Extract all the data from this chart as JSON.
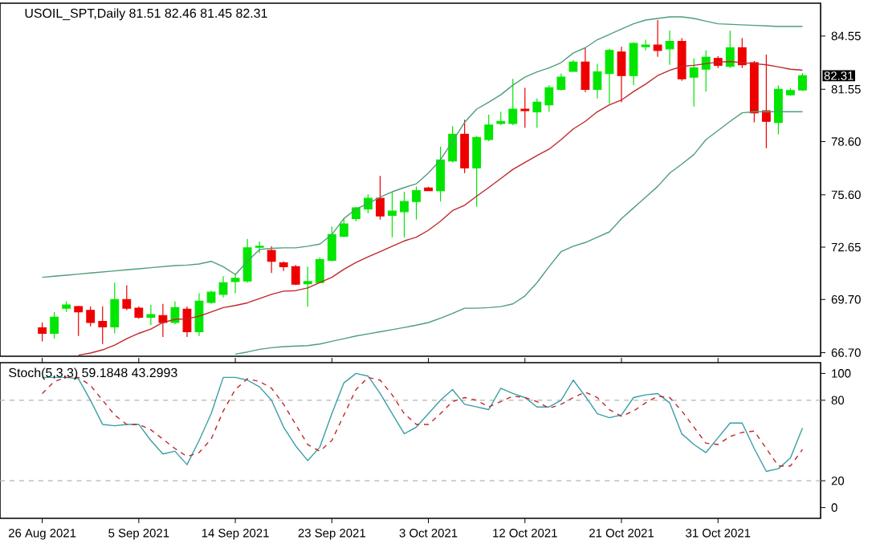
{
  "chart_data": [
    {
      "type": "candlestick",
      "title": "USOIL_SPT,Daily  81.51 82.46 81.45 82.31",
      "ohlc": [
        [
          68.1,
          68.4,
          67.34,
          67.79
        ],
        [
          67.79,
          69.0,
          67.49,
          68.7
        ],
        [
          69.21,
          69.6,
          69.0,
          69.39
        ],
        [
          69.3,
          69.35,
          67.64,
          69.0
        ],
        [
          69.09,
          69.3,
          68.19,
          68.4
        ],
        [
          68.46,
          69.3,
          67.19,
          68.16
        ],
        [
          68.16,
          70.65,
          67.79,
          69.69
        ],
        [
          69.69,
          70.5,
          69.09,
          69.21
        ],
        [
          69.21,
          69.3,
          68.61,
          68.7
        ],
        [
          68.7,
          69.39,
          68.25,
          68.85
        ],
        [
          68.79,
          69.45,
          67.58,
          68.4
        ],
        [
          68.4,
          69.6,
          68.31,
          69.24
        ],
        [
          69.15,
          69.3,
          67.58,
          67.88
        ],
        [
          67.88,
          70.05,
          67.64,
          69.6
        ],
        [
          69.53,
          70.2,
          69.45,
          70.11
        ],
        [
          69.99,
          71.01,
          69.81,
          70.65
        ],
        [
          70.71,
          71.1,
          70.05,
          70.89
        ],
        [
          70.74,
          73.12,
          70.65,
          72.61
        ],
        [
          72.64,
          72.97,
          72.31,
          72.7
        ],
        [
          72.46,
          72.7,
          71.19,
          71.85
        ],
        [
          71.76,
          71.85,
          71.31,
          71.55
        ],
        [
          71.55,
          71.64,
          70.5,
          70.56
        ],
        [
          70.59,
          71.55,
          69.3,
          70.71
        ],
        [
          70.65,
          72.07,
          70.65,
          71.94
        ],
        [
          71.91,
          73.81,
          71.85,
          73.36
        ],
        [
          73.27,
          74.26,
          73.21,
          73.96
        ],
        [
          74.26,
          74.92,
          74.11,
          74.86
        ],
        [
          74.8,
          75.62,
          74.56,
          75.4
        ],
        [
          75.4,
          76.67,
          74.2,
          74.41
        ],
        [
          74.44,
          75.77,
          73.21,
          74.68
        ],
        [
          74.65,
          75.77,
          73.21,
          75.22
        ],
        [
          75.22,
          76.07,
          74.2,
          75.83
        ],
        [
          75.98,
          76.05,
          75.8,
          75.83
        ],
        [
          75.83,
          78.32,
          75.22,
          77.57
        ],
        [
          77.51,
          79.47,
          77.42,
          79.01
        ],
        [
          79.01,
          79.83,
          76.82,
          77.12
        ],
        [
          77.12,
          78.92,
          74.92,
          78.83
        ],
        [
          78.71,
          80.13,
          78.62,
          79.53
        ],
        [
          79.62,
          80.28,
          79.53,
          79.74
        ],
        [
          79.62,
          82.14,
          79.53,
          80.43
        ],
        [
          80.43,
          81.63,
          79.38,
          80.34
        ],
        [
          80.28,
          81.03,
          79.38,
          80.82
        ],
        [
          80.67,
          81.78,
          80.28,
          81.63
        ],
        [
          81.54,
          82.44,
          81.48,
          82.23
        ],
        [
          82.56,
          83.2,
          82.53,
          83.08
        ],
        [
          83.08,
          83.89,
          81.39,
          81.54
        ],
        [
          81.54,
          82.99,
          81.03,
          82.53
        ],
        [
          82.44,
          83.83,
          80.73,
          83.74
        ],
        [
          83.65,
          83.95,
          80.82,
          82.32
        ],
        [
          82.32,
          84.19,
          81.78,
          84.13
        ],
        [
          83.95,
          84.34,
          83.74,
          84.04
        ],
        [
          84.04,
          85.45,
          83.38,
          83.74
        ],
        [
          83.83,
          84.85,
          82.93,
          84.25
        ],
        [
          84.25,
          84.43,
          82.02,
          82.14
        ],
        [
          82.23,
          83.29,
          80.58,
          82.75
        ],
        [
          82.68,
          83.74,
          81.42,
          83.35
        ],
        [
          83.29,
          83.41,
          82.75,
          82.9
        ],
        [
          82.84,
          84.85,
          82.75,
          83.89
        ],
        [
          83.89,
          84.43,
          82.75,
          82.93
        ],
        [
          83.05,
          83.14,
          79.68,
          80.22
        ],
        [
          80.34,
          83.5,
          78.23,
          79.74
        ],
        [
          79.68,
          81.78,
          79.01,
          81.54
        ],
        [
          81.24,
          81.63,
          81.18,
          81.48
        ],
        [
          81.51,
          82.46,
          81.45,
          82.31
        ]
      ],
      "colors": [
        "#ee0000",
        "#00e600",
        "#00e600",
        "#ee0000",
        "#ee0000",
        "#ee0000",
        "#00e600",
        "#ee0000",
        "#ee0000",
        "#00e600",
        "#ee0000",
        "#00e600",
        "#ee0000",
        "#00e600",
        "#00e600",
        "#00e600",
        "#00e600",
        "#00e600",
        "#00e600",
        "#ee0000",
        "#ee0000",
        "#ee0000",
        "#00e600",
        "#00e600",
        "#00e600",
        "#00e600",
        "#00e600",
        "#00e600",
        "#ee0000",
        "#00e600",
        "#00e600",
        "#00e600",
        "#ee0000",
        "#00e600",
        "#00e600",
        "#ee0000",
        "#00e600",
        "#00e600",
        "#00e600",
        "#00e600",
        "#ee0000",
        "#00e600",
        "#00e600",
        "#00e600",
        "#00e600",
        "#ee0000",
        "#00e600",
        "#00e600",
        "#ee0000",
        "#00e600",
        "#00e600",
        "#ee0000",
        "#00e600",
        "#ee0000",
        "#00e600",
        "#00e600",
        "#ee0000",
        "#00e600",
        "#ee0000",
        "#ee0000",
        "#ee0000",
        "#00e600",
        "#00e600",
        "#00e600"
      ],
      "series": [
        {
          "type": "line",
          "color": "#4f9e78",
          "values": [
            70.95,
            71.01,
            71.07,
            71.13,
            71.19,
            71.25,
            71.31,
            71.37,
            71.43,
            71.49,
            71.55,
            71.61,
            71.64,
            71.7,
            71.85,
            71.55,
            71.1,
            71.85,
            72.52,
            72.58,
            72.61,
            72.61,
            72.7,
            72.82,
            73.36,
            74.26,
            74.8,
            75.1,
            75.47,
            75.77,
            76.01,
            76.22,
            76.82,
            77.57,
            78.62,
            79.68,
            80.43,
            80.82,
            81.24,
            81.78,
            82.23,
            82.53,
            82.75,
            83.05,
            83.59,
            83.89,
            84.34,
            84.64,
            84.94,
            85.24,
            85.45,
            85.54,
            85.63,
            85.63,
            85.54,
            85.39,
            85.24,
            85.21,
            85.18,
            85.15,
            85.12,
            85.09,
            85.09,
            85.09
          ]
        },
        {
          "type": "line",
          "color": "#c0282d",
          "values": [
            null,
            null,
            null,
            66.56,
            66.68,
            66.86,
            67.13,
            67.49,
            67.79,
            68.03,
            68.4,
            68.58,
            68.61,
            68.76,
            69.0,
            69.24,
            69.36,
            69.51,
            69.75,
            69.99,
            70.17,
            70.2,
            70.35,
            70.65,
            70.95,
            71.4,
            71.79,
            72.1,
            72.4,
            72.7,
            73.0,
            73.21,
            73.6,
            74.11,
            74.71,
            75.01,
            75.52,
            76.01,
            76.52,
            77.03,
            77.42,
            77.81,
            78.17,
            78.71,
            79.31,
            79.74,
            80.28,
            80.67,
            80.94,
            81.42,
            81.84,
            82.32,
            82.62,
            82.84,
            82.9,
            82.99,
            83.08,
            83.11,
            83.05,
            82.99,
            82.93,
            82.81,
            82.68,
            82.62
          ]
        },
        {
          "type": "line",
          "color": "#4f9e78",
          "values": [
            null,
            null,
            null,
            null,
            null,
            null,
            null,
            null,
            null,
            null,
            null,
            null,
            null,
            null,
            null,
            null,
            66.62,
            66.74,
            66.89,
            66.98,
            67.04,
            67.07,
            67.1,
            67.19,
            67.34,
            67.49,
            67.64,
            67.76,
            67.88,
            68.0,
            68.12,
            68.25,
            68.4,
            68.64,
            68.91,
            69.21,
            69.21,
            69.24,
            69.3,
            69.45,
            69.9,
            70.65,
            71.55,
            72.4,
            72.7,
            72.91,
            73.21,
            73.51,
            74.26,
            74.86,
            75.47,
            76.07,
            76.82,
            77.33,
            77.87,
            78.71,
            79.22,
            79.74,
            80.22,
            80.28,
            80.28,
            80.28,
            80.28,
            80.28
          ]
        }
      ],
      "ylim": [
        66.5,
        86.4
      ],
      "yticks": [
        84.55,
        81.55,
        {
          "value": 78.6,
          "label": "78.60"
        },
        {
          "value": 75.6,
          "label": "75.60"
        },
        72.65,
        {
          "value": 69.7,
          "label": "69.70"
        },
        {
          "value": 66.7,
          "label": "66.70"
        }
      ],
      "tick_labels": "y",
      "annotations": [
        "82.31"
      ]
    },
    {
      "type": "line",
      "title": "Stoch(5,3,3) 59.1848 43.2993",
      "categories": [
        "26 Aug 2021",
        null,
        null,
        null,
        null,
        null,
        null,
        null,
        "5 Sep 2021",
        null,
        null,
        null,
        null,
        null,
        null,
        null,
        "14 Sep 2021",
        null,
        null,
        null,
        null,
        null,
        null,
        null,
        "23 Sep 2021",
        null,
        null,
        null,
        null,
        null,
        null,
        null,
        "3 Oct 2021",
        null,
        null,
        null,
        null,
        null,
        null,
        null,
        "12 Oct 2021",
        null,
        null,
        null,
        null,
        null,
        null,
        null,
        "21 Oct 2021",
        null,
        null,
        null,
        null,
        null,
        null,
        null,
        "31 Oct 2021",
        null,
        null,
        null,
        null,
        null,
        null,
        null
      ],
      "series": [
        {
          "color": "#3a9ea5",
          "values": [
            97,
            97,
            97,
            96,
            80,
            62,
            61,
            62,
            62,
            50,
            40,
            42,
            32,
            50,
            70,
            97,
            97,
            95,
            90,
            80,
            60,
            46,
            35,
            45,
            70,
            93,
            100,
            98,
            85,
            70,
            55,
            60,
            70,
            80,
            88,
            77,
            75,
            73,
            89,
            85,
            82,
            75,
            75,
            80,
            95,
            83,
            70,
            67,
            69,
            82,
            84,
            85,
            78,
            55,
            47,
            41,
            52,
            63,
            63,
            44,
            27,
            29,
            37,
            59.2
          ]
        },
        {
          "color": "#c0282d",
          "line_style": "dashed",
          "values": [
            85,
            94,
            97,
            97,
            91,
            80,
            69,
            62,
            62,
            58,
            51,
            44,
            38,
            41,
            51,
            72,
            88,
            96,
            94,
            89,
            77,
            62,
            47,
            42,
            50,
            69,
            88,
            97,
            95,
            84,
            70,
            62,
            62,
            70,
            79,
            82,
            80,
            75,
            79,
            83,
            82,
            79,
            74,
            77,
            82,
            86,
            82,
            73,
            68,
            72,
            78,
            83,
            82,
            72,
            60,
            48,
            47,
            53,
            56,
            57,
            44,
            31,
            31,
            43.3
          ]
        }
      ],
      "ylim": [
        -8,
        108
      ],
      "yticks": [
        0,
        20,
        80,
        100
      ],
      "ref_lines": [
        {
          "axis": "y",
          "value": 20,
          "color": "#b4b4b4",
          "line_style": "dashed"
        },
        {
          "axis": "y",
          "value": 80,
          "color": "#b4b4b4",
          "line_style": "dashed"
        }
      ]
    }
  ]
}
